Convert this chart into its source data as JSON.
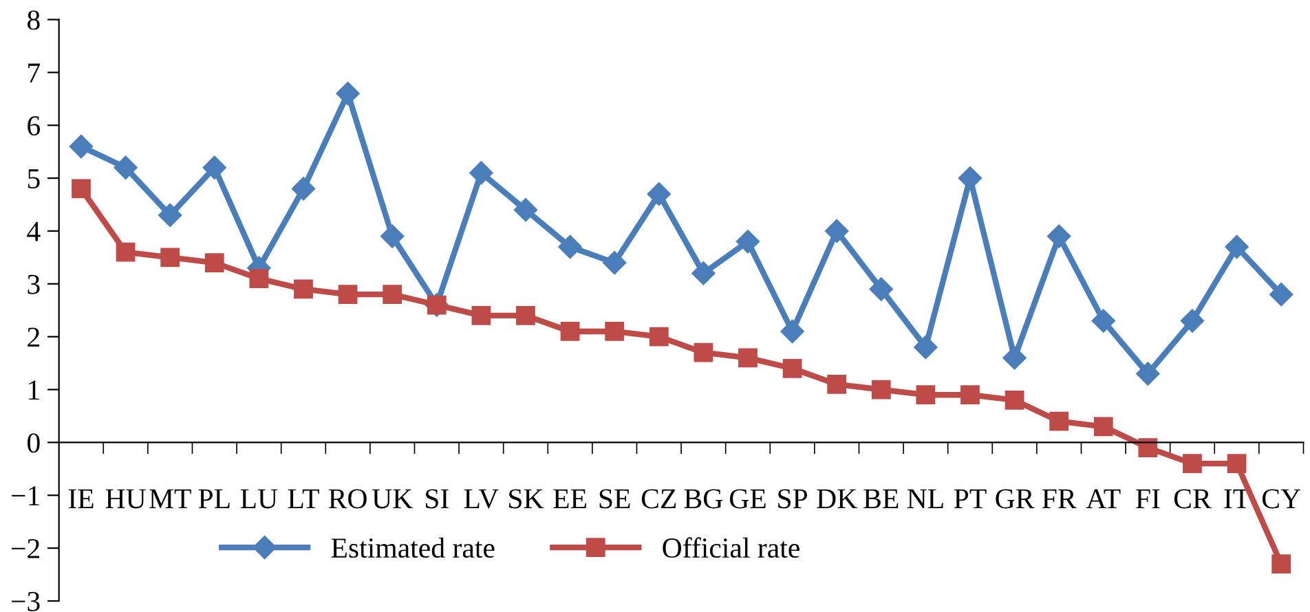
{
  "chart_data": {
    "type": "line",
    "categories": [
      "IE",
      "HU",
      "MT",
      "PL",
      "LU",
      "LT",
      "RO",
      "UK",
      "SI",
      "LV",
      "SK",
      "EE",
      "SE",
      "CZ",
      "BG",
      "GE",
      "SP",
      "DK",
      "BE",
      "NL",
      "PT",
      "GR",
      "FR",
      "AT",
      "FI",
      "CR",
      "IT",
      "CY"
    ],
    "series": [
      {
        "name": "Estimated rate",
        "color": "#4a7ebb",
        "marker": "diamond",
        "values": [
          5.6,
          5.2,
          4.3,
          5.2,
          3.3,
          4.8,
          6.6,
          3.9,
          2.6,
          5.1,
          4.4,
          3.7,
          3.4,
          4.7,
          3.2,
          3.8,
          2.1,
          4.0,
          2.9,
          1.8,
          5.0,
          1.6,
          3.9,
          2.3,
          1.3,
          2.3,
          3.7,
          2.8
        ]
      },
      {
        "name": "Official rate",
        "color": "#be4b48",
        "marker": "square",
        "values": [
          4.8,
          3.6,
          3.5,
          3.4,
          3.1,
          2.9,
          2.8,
          2.8,
          2.6,
          2.4,
          2.4,
          2.1,
          2.1,
          2.0,
          1.7,
          1.6,
          1.4,
          1.1,
          1.0,
          0.9,
          0.9,
          0.8,
          0.4,
          0.3,
          -0.1,
          -0.4,
          -0.4,
          -2.3
        ]
      }
    ],
    "ylim": [
      -3,
      8
    ],
    "yticks": [
      {
        "value": -3,
        "label": "−3"
      },
      {
        "value": -2,
        "label": "−2"
      },
      {
        "value": -1,
        "label": "−1"
      },
      0,
      1,
      2,
      3,
      4,
      5,
      6,
      7,
      8
    ],
    "grid": false,
    "legend": "bottom left",
    "line_style": "solid"
  }
}
